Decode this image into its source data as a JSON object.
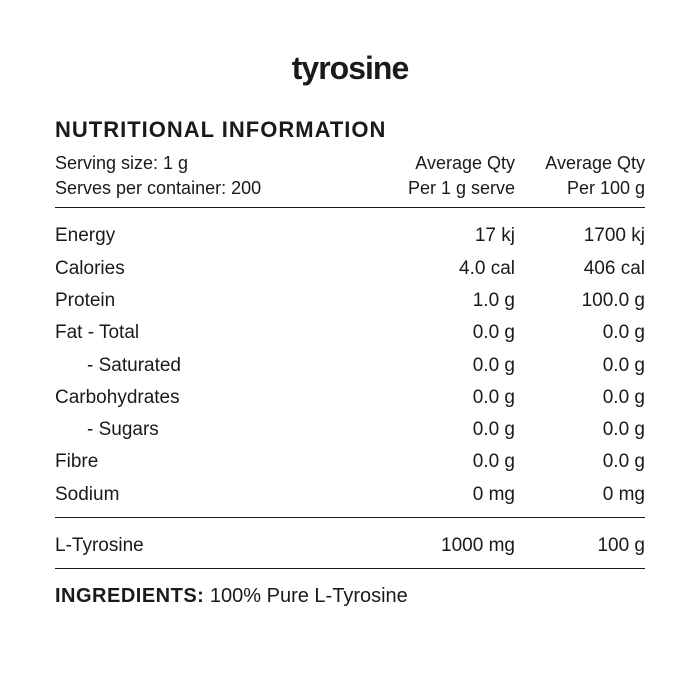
{
  "product_title": "tyrosine",
  "section_title": "NUTRITIONAL INFORMATION",
  "serving_size_label": "Serving size: 1 g",
  "serves_per_container_label": "Serves per container: 200",
  "col1_line1": "Average Qty",
  "col1_line2": "Per 1 g serve",
  "col2_line1": "Average Qty",
  "col2_line2": "Per 100 g",
  "rows_main": [
    {
      "label": "Energy",
      "indent": false,
      "per_serve": "17 kj",
      "per_100g": "1700 kj"
    },
    {
      "label": "Calories",
      "indent": false,
      "per_serve": "4.0 cal",
      "per_100g": "406 cal"
    },
    {
      "label": "Protein",
      "indent": false,
      "per_serve": "1.0 g",
      "per_100g": "100.0 g"
    },
    {
      "label": "Fat  - Total",
      "indent": false,
      "per_serve": "0.0 g",
      "per_100g": "0.0 g"
    },
    {
      "label": "- Saturated",
      "indent": true,
      "per_serve": "0.0 g",
      "per_100g": "0.0 g"
    },
    {
      "label": "Carbohydrates",
      "indent": false,
      "per_serve": "0.0 g",
      "per_100g": "0.0 g"
    },
    {
      "label": "- Sugars",
      "indent": true,
      "per_serve": "0.0 g",
      "per_100g": "0.0 g"
    },
    {
      "label": "Fibre",
      "indent": false,
      "per_serve": "0.0 g",
      "per_100g": "0.0 g"
    },
    {
      "label": "Sodium",
      "indent": false,
      "per_serve": "0 mg",
      "per_100g": "0 mg"
    }
  ],
  "rows_secondary": [
    {
      "label": "L-Tyrosine",
      "indent": false,
      "per_serve": "1000 mg",
      "per_100g": "100 g"
    }
  ],
  "ingredients_label": "INGREDIENTS:",
  "ingredients_text": "100% Pure L-Tyrosine",
  "colors": {
    "text": "#1a1a1a",
    "background": "#ffffff",
    "divider": "#1a1a1a"
  },
  "fontsize": {
    "product_title": 32,
    "section_title": 22,
    "header": 18,
    "row": 19,
    "ingredients": 20
  }
}
